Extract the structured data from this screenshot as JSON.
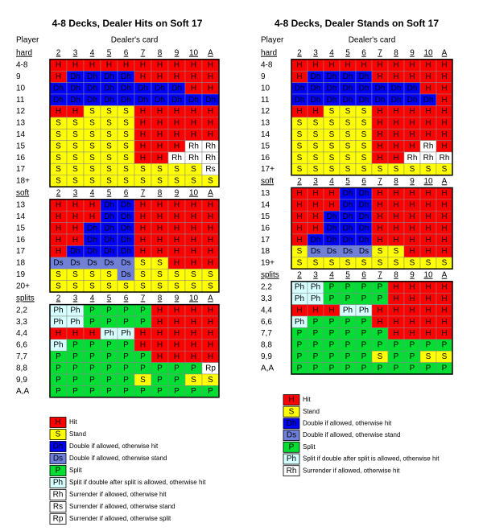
{
  "left": {
    "title": "4-8 Decks, Dealer Hits on Soft 17",
    "player_label": "Player",
    "dealer_label": "Dealer's card",
    "sections": [
      {
        "label": "hard",
        "columns": [
          "2",
          "3",
          "4",
          "5",
          "6",
          "7",
          "8",
          "9",
          "10",
          "A"
        ],
        "rows": [
          {
            "label": "4-8",
            "cells": [
              "H",
              "H",
              "H",
              "H",
              "H",
              "H",
              "H",
              "H",
              "H",
              "H"
            ]
          },
          {
            "label": "9",
            "cells": [
              "H",
              "Dh",
              "Dh",
              "Dh",
              "Dh",
              "H",
              "H",
              "H",
              "H",
              "H"
            ]
          },
          {
            "label": "10",
            "cells": [
              "Dh",
              "Dh",
              "Dh",
              "Dh",
              "Dh",
              "Dh",
              "Dh",
              "Dh",
              "H",
              "H"
            ]
          },
          {
            "label": "11",
            "cells": [
              "Dh",
              "Dh",
              "Dh",
              "Dh",
              "Dh",
              "Dh",
              "Dh",
              "Dh",
              "Dh",
              "Dh"
            ]
          },
          {
            "label": "12",
            "cells": [
              "H",
              "H",
              "S",
              "S",
              "S",
              "H",
              "H",
              "H",
              "H",
              "H"
            ]
          },
          {
            "label": "13",
            "cells": [
              "S",
              "S",
              "S",
              "S",
              "S",
              "H",
              "H",
              "H",
              "H",
              "H"
            ]
          },
          {
            "label": "14",
            "cells": [
              "S",
              "S",
              "S",
              "S",
              "S",
              "H",
              "H",
              "H",
              "H",
              "H"
            ]
          },
          {
            "label": "15",
            "cells": [
              "S",
              "S",
              "S",
              "S",
              "S",
              "H",
              "H",
              "H",
              "Rh",
              "Rh"
            ]
          },
          {
            "label": "16",
            "cells": [
              "S",
              "S",
              "S",
              "S",
              "S",
              "H",
              "H",
              "Rh",
              "Rh",
              "Rh"
            ]
          },
          {
            "label": "17",
            "cells": [
              "S",
              "S",
              "S",
              "S",
              "S",
              "S",
              "S",
              "S",
              "S",
              "Rs"
            ]
          },
          {
            "label": "18+",
            "cells": [
              "S",
              "S",
              "S",
              "S",
              "S",
              "S",
              "S",
              "S",
              "S",
              "S"
            ]
          }
        ]
      },
      {
        "label": "soft",
        "columns": [
          "2",
          "3",
          "4",
          "5",
          "6",
          "7",
          "8",
          "9",
          "10",
          "A"
        ],
        "rows": [
          {
            "label": "13",
            "cells": [
              "H",
              "H",
              "H",
              "Dh",
              "Dh",
              "H",
              "H",
              "H",
              "H",
              "H"
            ]
          },
          {
            "label": "14",
            "cells": [
              "H",
              "H",
              "H",
              "Dh",
              "Dh",
              "H",
              "H",
              "H",
              "H",
              "H"
            ]
          },
          {
            "label": "15",
            "cells": [
              "H",
              "H",
              "Dh",
              "Dh",
              "Dh",
              "H",
              "H",
              "H",
              "H",
              "H"
            ]
          },
          {
            "label": "16",
            "cells": [
              "H",
              "H",
              "Dh",
              "Dh",
              "Dh",
              "H",
              "H",
              "H",
              "H",
              "H"
            ]
          },
          {
            "label": "17",
            "cells": [
              "H",
              "Dh",
              "Dh",
              "Dh",
              "Dh",
              "H",
              "H",
              "H",
              "H",
              "H"
            ]
          },
          {
            "label": "18",
            "cells": [
              "Ds",
              "Ds",
              "Ds",
              "Ds",
              "Ds",
              "S",
              "S",
              "H",
              "H",
              "H"
            ]
          },
          {
            "label": "19",
            "cells": [
              "S",
              "S",
              "S",
              "S",
              "Ds",
              "S",
              "S",
              "S",
              "S",
              "S"
            ]
          },
          {
            "label": "20+",
            "cells": [
              "S",
              "S",
              "S",
              "S",
              "S",
              "S",
              "S",
              "S",
              "S",
              "S"
            ]
          }
        ]
      },
      {
        "label": "splits",
        "columns": [
          "2",
          "3",
          "4",
          "5",
          "6",
          "7",
          "8",
          "9",
          "10",
          "A"
        ],
        "rows": [
          {
            "label": "2,2",
            "cells": [
              "Ph",
              "Ph",
              "P",
              "P",
              "P",
              "P",
              "H",
              "H",
              "H",
              "H"
            ]
          },
          {
            "label": "3,3",
            "cells": [
              "Ph",
              "Ph",
              "P",
              "P",
              "P",
              "P",
              "H",
              "H",
              "H",
              "H"
            ]
          },
          {
            "label": "4,4",
            "cells": [
              "H",
              "H",
              "H",
              "Ph",
              "Ph",
              "H",
              "H",
              "H",
              "H",
              "H"
            ]
          },
          {
            "label": "6,6",
            "cells": [
              "Ph",
              "P",
              "P",
              "P",
              "P",
              "H",
              "H",
              "H",
              "H",
              "H"
            ]
          },
          {
            "label": "7,7",
            "cells": [
              "P",
              "P",
              "P",
              "P",
              "P",
              "P",
              "H",
              "H",
              "H",
              "H"
            ]
          },
          {
            "label": "8,8",
            "cells": [
              "P",
              "P",
              "P",
              "P",
              "P",
              "P",
              "P",
              "P",
              "P",
              "Rp"
            ]
          },
          {
            "label": "9,9",
            "cells": [
              "P",
              "P",
              "P",
              "P",
              "P",
              "S",
              "P",
              "P",
              "S",
              "S"
            ]
          },
          {
            "label": "A,A",
            "cells": [
              "P",
              "P",
              "P",
              "P",
              "P",
              "P",
              "P",
              "P",
              "P",
              "P"
            ]
          }
        ]
      }
    ],
    "legend": [
      {
        "code": "H",
        "text": "Hit"
      },
      {
        "code": "S",
        "text": "Stand"
      },
      {
        "code": "Dh",
        "text": "Double if allowed, otherwise hit"
      },
      {
        "code": "Ds",
        "text": "Double if allowed, otherwise stand"
      },
      {
        "code": "P",
        "text": "Split"
      },
      {
        "code": "Ph",
        "text": "Split if double after split is allowed, otherwise hit"
      },
      {
        "code": "Rh",
        "text": "Surrender if allowed, otherwise hit"
      },
      {
        "code": "Rs",
        "text": "Surrender if allowed, otherwise stand"
      },
      {
        "code": "Rp",
        "text": "Surrender if allowed, otherwise split"
      }
    ]
  },
  "right": {
    "title": "4-8 Decks, Dealer Stands on Soft 17",
    "player_label": "Player",
    "dealer_label": "Dealer's card",
    "sections": [
      {
        "label": "hard",
        "columns": [
          "2",
          "3",
          "4",
          "5",
          "6",
          "7",
          "8",
          "9",
          "10",
          "A"
        ],
        "rows": [
          {
            "label": "4-8",
            "cells": [
              "H",
              "H",
              "H",
              "H",
              "H",
              "H",
              "H",
              "H",
              "H",
              "H"
            ]
          },
          {
            "label": "9",
            "cells": [
              "H",
              "Dh",
              "Dh",
              "Dh",
              "Dh",
              "H",
              "H",
              "H",
              "H",
              "H"
            ]
          },
          {
            "label": "10",
            "cells": [
              "Dh",
              "Dh",
              "Dh",
              "Dh",
              "Dh",
              "Dh",
              "Dh",
              "Dh",
              "H",
              "H"
            ]
          },
          {
            "label": "11",
            "cells": [
              "Dh",
              "Dh",
              "Dh",
              "Dh",
              "Dh",
              "Dh",
              "Dh",
              "Dh",
              "Dh",
              "H"
            ]
          },
          {
            "label": "12",
            "cells": [
              "H",
              "H",
              "S",
              "S",
              "S",
              "H",
              "H",
              "H",
              "H",
              "H"
            ]
          },
          {
            "label": "13",
            "cells": [
              "S",
              "S",
              "S",
              "S",
              "S",
              "H",
              "H",
              "H",
              "H",
              "H"
            ]
          },
          {
            "label": "14",
            "cells": [
              "S",
              "S",
              "S",
              "S",
              "S",
              "H",
              "H",
              "H",
              "H",
              "H"
            ]
          },
          {
            "label": "15",
            "cells": [
              "S",
              "S",
              "S",
              "S",
              "S",
              "H",
              "H",
              "H",
              "Rh",
              "H"
            ]
          },
          {
            "label": "16",
            "cells": [
              "S",
              "S",
              "S",
              "S",
              "S",
              "H",
              "H",
              "Rh",
              "Rh",
              "Rh"
            ]
          },
          {
            "label": "17+",
            "cells": [
              "S",
              "S",
              "S",
              "S",
              "S",
              "S",
              "S",
              "S",
              "S",
              "S"
            ]
          }
        ]
      },
      {
        "label": "soft",
        "columns": [
          "2",
          "3",
          "4",
          "5",
          "6",
          "7",
          "8",
          "9",
          "10",
          "A"
        ],
        "rows": [
          {
            "label": "13",
            "cells": [
              "H",
              "H",
              "H",
              "Dh",
              "Dh",
              "H",
              "H",
              "H",
              "H",
              "H"
            ]
          },
          {
            "label": "14",
            "cells": [
              "H",
              "H",
              "H",
              "Dh",
              "Dh",
              "H",
              "H",
              "H",
              "H",
              "H"
            ]
          },
          {
            "label": "15",
            "cells": [
              "H",
              "H",
              "Dh",
              "Dh",
              "Dh",
              "H",
              "H",
              "H",
              "H",
              "H"
            ]
          },
          {
            "label": "16",
            "cells": [
              "H",
              "H",
              "Dh",
              "Dh",
              "Dh",
              "H",
              "H",
              "H",
              "H",
              "H"
            ]
          },
          {
            "label": "17",
            "cells": [
              "H",
              "Dh",
              "Dh",
              "Dh",
              "Dh",
              "H",
              "H",
              "H",
              "H",
              "H"
            ]
          },
          {
            "label": "18",
            "cells": [
              "S",
              "Ds",
              "Ds",
              "Ds",
              "Ds",
              "S",
              "S",
              "H",
              "H",
              "H"
            ]
          },
          {
            "label": "19+",
            "cells": [
              "S",
              "S",
              "S",
              "S",
              "S",
              "S",
              "S",
              "S",
              "S",
              "S"
            ]
          }
        ]
      },
      {
        "label": "splits",
        "columns": [
          "2",
          "3",
          "4",
          "5",
          "6",
          "7",
          "8",
          "9",
          "10",
          "A"
        ],
        "rows": [
          {
            "label": "2,2",
            "cells": [
              "Ph",
              "Ph",
              "P",
              "P",
              "P",
              "P",
              "H",
              "H",
              "H",
              "H"
            ]
          },
          {
            "label": "3,3",
            "cells": [
              "Ph",
              "Ph",
              "P",
              "P",
              "P",
              "P",
              "H",
              "H",
              "H",
              "H"
            ]
          },
          {
            "label": "4,4",
            "cells": [
              "H",
              "H",
              "H",
              "Ph",
              "Ph",
              "H",
              "H",
              "H",
              "H",
              "H"
            ]
          },
          {
            "label": "6,6",
            "cells": [
              "Ph",
              "P",
              "P",
              "P",
              "P",
              "H",
              "H",
              "H",
              "H",
              "H"
            ]
          },
          {
            "label": "7,7",
            "cells": [
              "P",
              "P",
              "P",
              "P",
              "P",
              "P",
              "H",
              "H",
              "H",
              "H"
            ]
          },
          {
            "label": "8,8",
            "cells": [
              "P",
              "P",
              "P",
              "P",
              "P",
              "P",
              "P",
              "P",
              "P",
              "P"
            ]
          },
          {
            "label": "9,9",
            "cells": [
              "P",
              "P",
              "P",
              "P",
              "P",
              "S",
              "P",
              "P",
              "S",
              "S"
            ]
          },
          {
            "label": "A,A",
            "cells": [
              "P",
              "P",
              "P",
              "P",
              "P",
              "P",
              "P",
              "P",
              "P",
              "P"
            ]
          }
        ]
      }
    ],
    "legend": [
      {
        "code": "H",
        "text": "Hit"
      },
      {
        "code": "S",
        "text": "Stand"
      },
      {
        "code": "Dh",
        "text": "Double if allowed, otherwise hit"
      },
      {
        "code": "Ds",
        "text": "Double if allowed, otherwise stand"
      },
      {
        "code": "P",
        "text": "Split"
      },
      {
        "code": "Ph",
        "text": "Split if double after split is allowed, otherwise hit"
      },
      {
        "code": "Rh",
        "text": "Surrender if allowed, otherwise hit"
      }
    ]
  }
}
